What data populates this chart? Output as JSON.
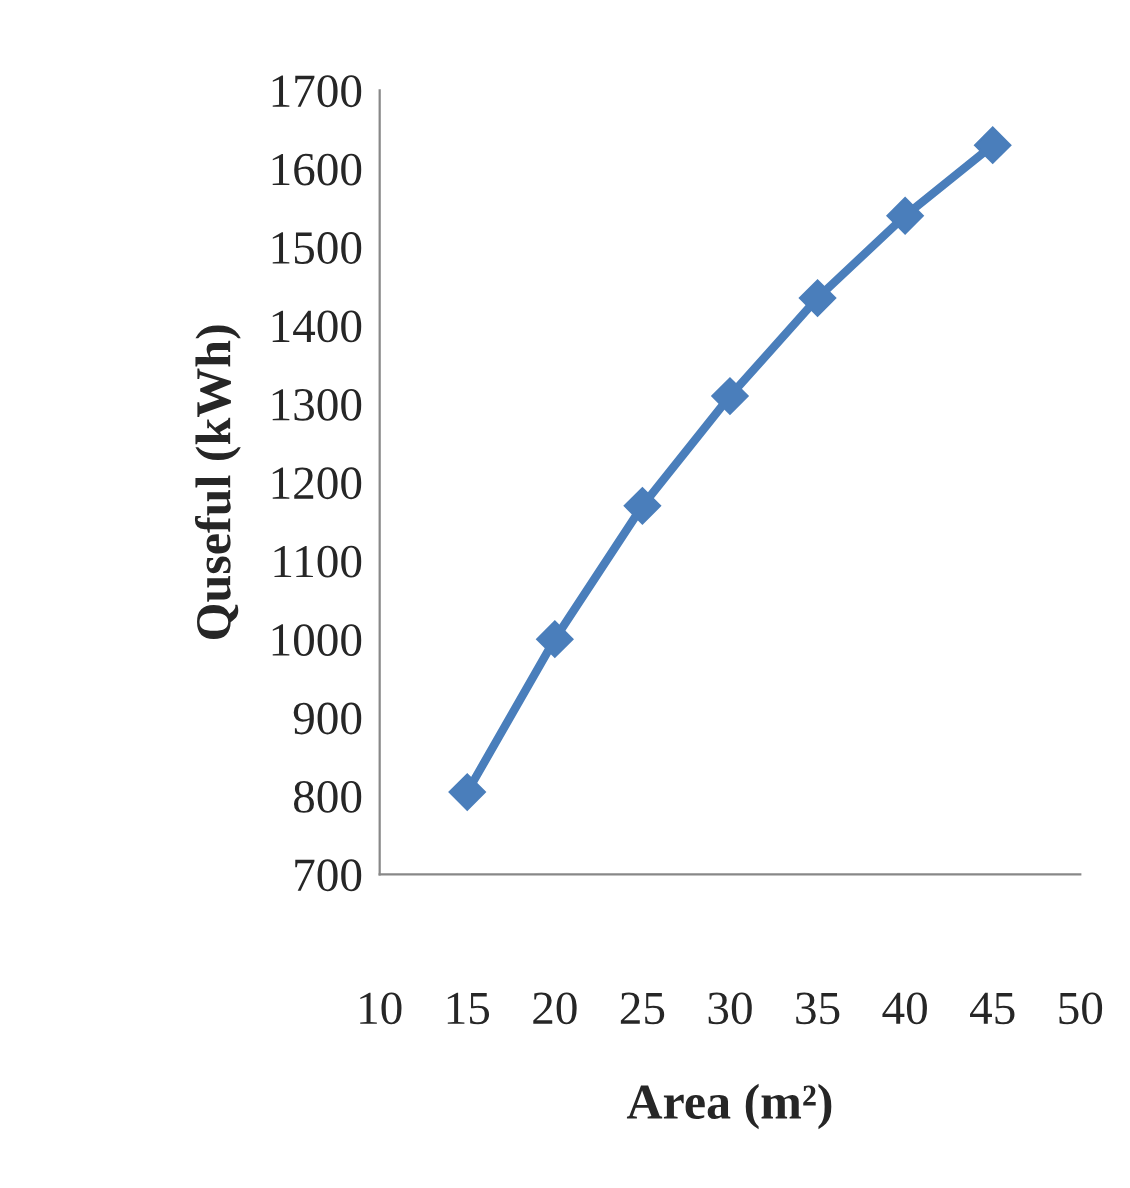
{
  "chart_data": {
    "type": "line",
    "xlabel": "Area (m²)",
    "ylabel": "Quseful (kWh)",
    "x": [
      15,
      20,
      25,
      30,
      35,
      40,
      45
    ],
    "series": [
      {
        "color": "#4a7ebb",
        "values": [
          805,
          1000,
          1170,
          1310,
          1435,
          1540,
          1630
        ]
      }
    ],
    "xlim": [
      10,
      50
    ],
    "xticks": [
      10,
      15,
      20,
      25,
      30,
      35,
      40,
      45,
      50
    ],
    "ylim": [
      700,
      1700
    ],
    "yticks": [
      700,
      800,
      900,
      1000,
      1100,
      1200,
      1300,
      1400,
      1500,
      1600,
      1700
    ],
    "grid": false,
    "legend": false,
    "marker": "diamond",
    "line_style": "solid"
  }
}
